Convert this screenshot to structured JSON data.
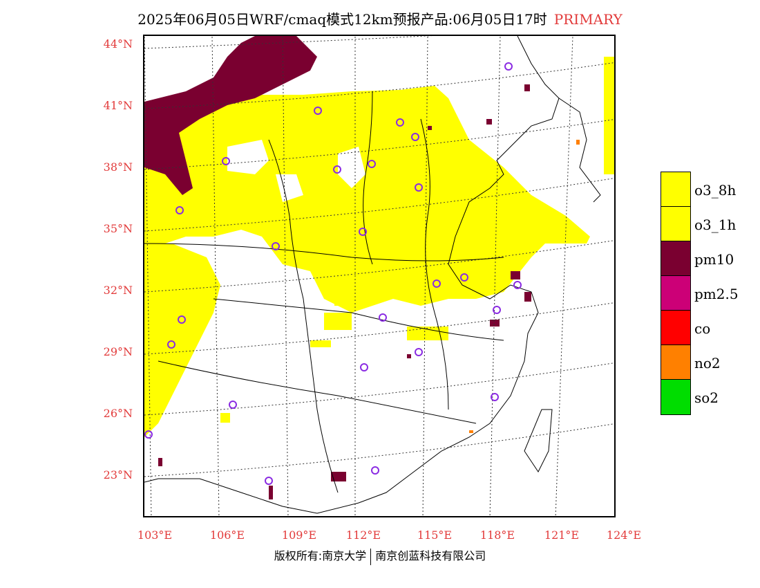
{
  "title": {
    "main": "2025年06月05日WRF/cmaq模式12km预报产品:06月05日17时",
    "tag": "PRIMARY"
  },
  "lat_labels": [
    "44°N",
    "41°N",
    "38°N",
    "35°N",
    "32°N",
    "29°N",
    "26°N",
    "23°N"
  ],
  "lon_labels": [
    "103°E",
    "106°E",
    "109°E",
    "112°E",
    "115°E",
    "118°E",
    "121°E",
    "124°E"
  ],
  "legend": [
    {
      "label": "o3_8h",
      "color": "#ffff00"
    },
    {
      "label": "o3_1h",
      "color": "#ffff00"
    },
    {
      "label": "pm10",
      "color": "#7a0030"
    },
    {
      "label": "pm2.5",
      "color": "#cc0077"
    },
    {
      "label": "co",
      "color": "#ff0000"
    },
    {
      "label": "no2",
      "color": "#ff8000"
    },
    {
      "label": "so2",
      "color": "#00dd00"
    }
  ],
  "footer": {
    "left": "版权所有:南京大学",
    "right": "南京创蓝科技有限公司"
  },
  "colors": {
    "label_red": "#e23a3a",
    "station_marker": "#8a2be2"
  }
}
